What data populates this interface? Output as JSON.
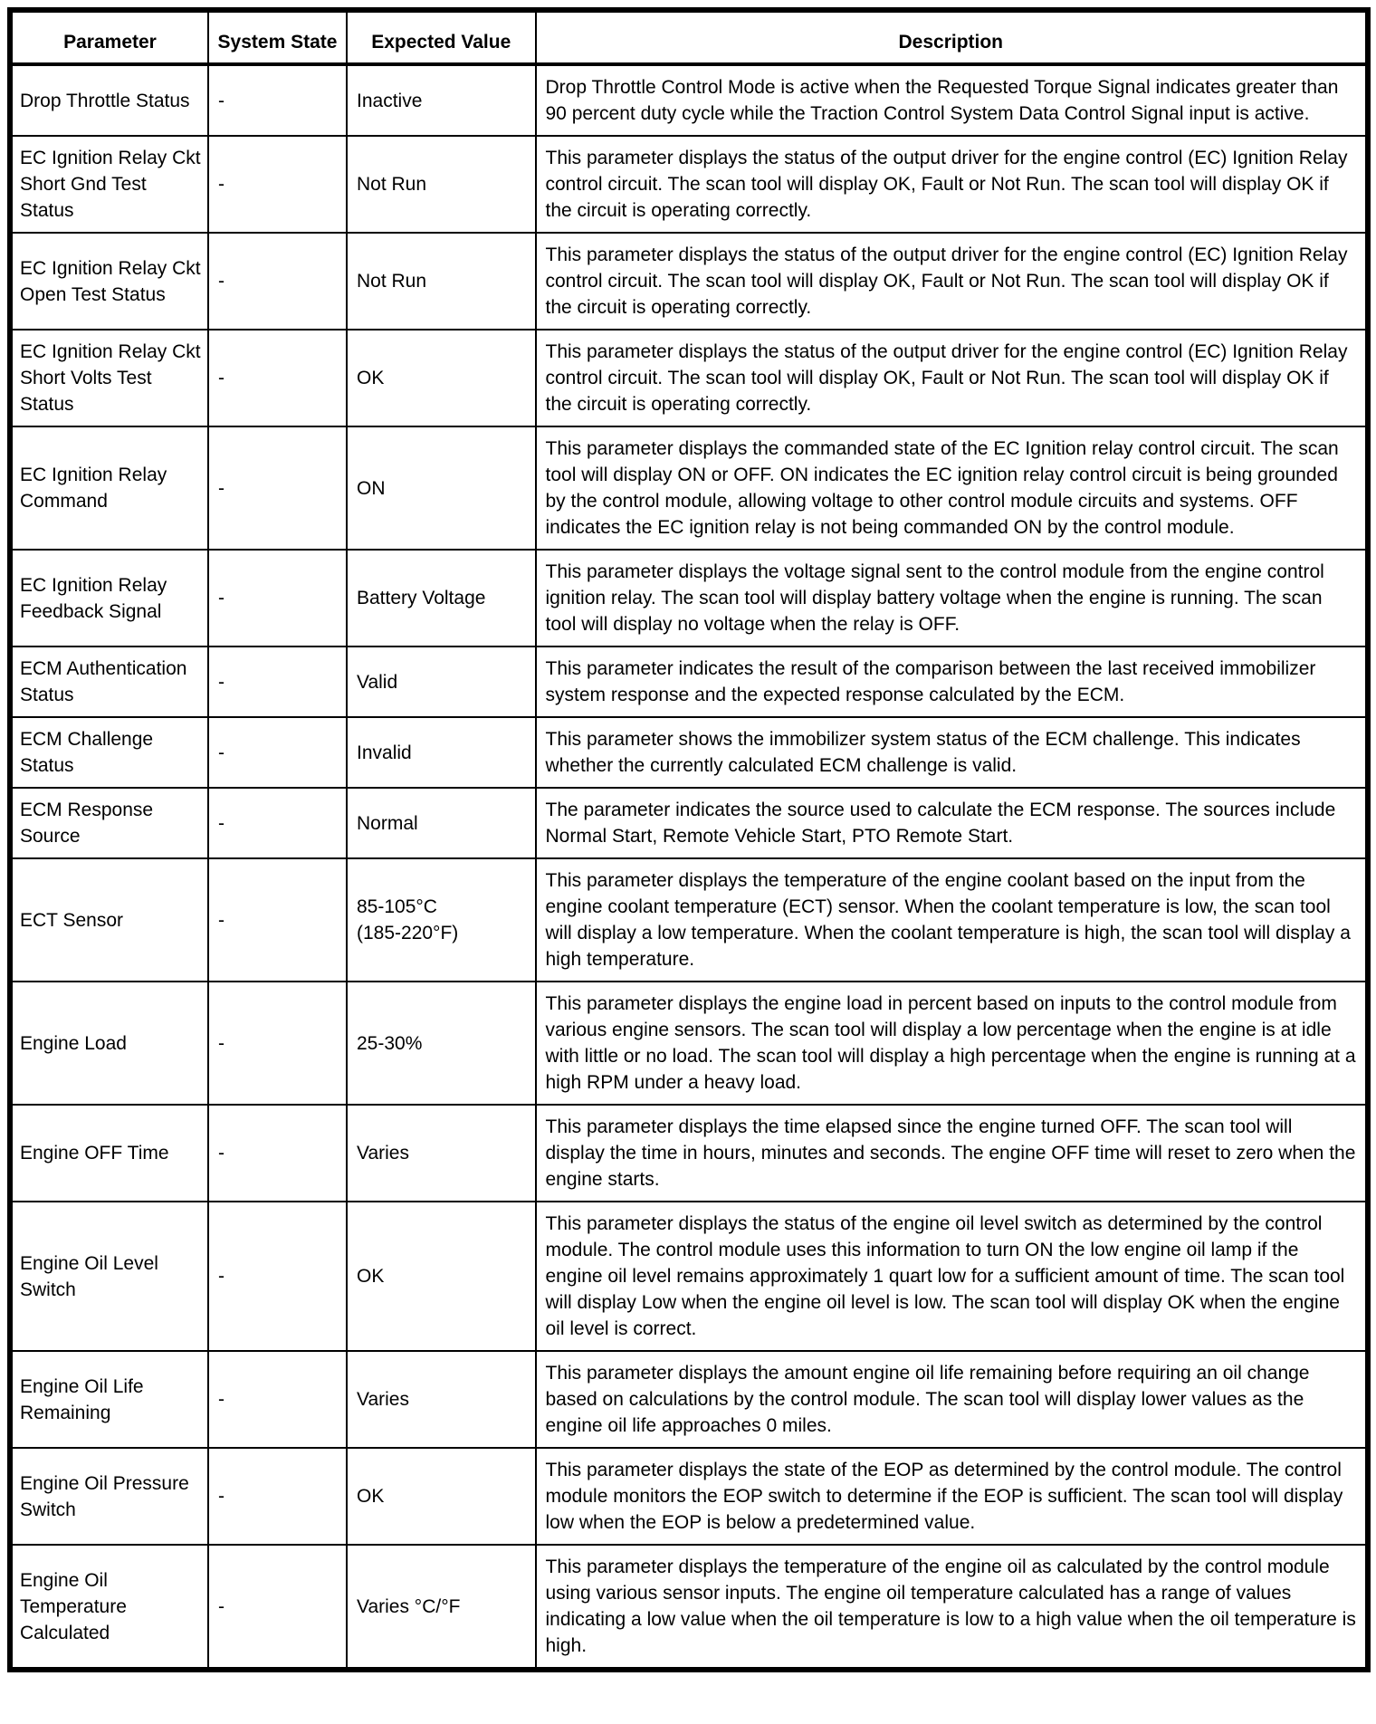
{
  "table": {
    "headers": {
      "parameter": "Parameter",
      "system_state": "System State",
      "expected_value": "Expected Value",
      "description": "Description"
    },
    "rows": [
      {
        "parameter": "Drop Throttle Status",
        "system_state": "-",
        "expected_value": "Inactive",
        "description": "Drop Throttle Control Mode is active when the Requested Torque Signal indicates greater than 90 percent duty cycle while the Traction Control System Data Control Signal input is active."
      },
      {
        "parameter": "EC Ignition Relay Ckt Short Gnd Test Status",
        "system_state": "-",
        "expected_value": "Not Run",
        "description": "This parameter displays the status of the output driver for the engine control (EC) Ignition Relay control circuit. The scan tool will display OK, Fault or Not Run. The scan tool will display OK if the circuit is operating correctly."
      },
      {
        "parameter": "EC Ignition Relay Ckt Open Test Status",
        "system_state": "-",
        "expected_value": "Not Run",
        "description": "This parameter displays the status of the output driver for the engine control (EC) Ignition Relay control circuit. The scan tool will display OK, Fault or Not Run. The scan tool will display OK if the circuit is operating correctly."
      },
      {
        "parameter": "EC Ignition Relay Ckt Short Volts Test Status",
        "system_state": "-",
        "expected_value": "OK",
        "description": "This parameter displays the status of the output driver for the engine control (EC) Ignition Relay control circuit. The scan tool will display OK, Fault or Not Run. The scan tool will display OK if the circuit is operating correctly."
      },
      {
        "parameter": "EC Ignition Relay Command",
        "system_state": "-",
        "expected_value": "ON",
        "description": "This parameter displays the commanded state of the EC Ignition relay control circuit. The scan tool will display ON or OFF. ON indicates the EC ignition relay control circuit is being grounded by the control module, allowing voltage to other control module circuits and systems. OFF indicates the EC ignition relay is not being commanded ON by the control module."
      },
      {
        "parameter": "EC Ignition Relay Feedback Signal",
        "system_state": "-",
        "expected_value": "Battery Voltage",
        "description": "This parameter displays the voltage signal sent to the control module from the engine control ignition relay. The scan tool will display battery voltage when the engine is running. The scan tool will display no voltage when the relay is OFF."
      },
      {
        "parameter": "ECM Authentication Status",
        "system_state": "-",
        "expected_value": "Valid",
        "description": "This parameter indicates the result of the comparison between the last received immobilizer system response and the expected response calculated by the ECM."
      },
      {
        "parameter": "ECM Challenge Status",
        "system_state": "-",
        "expected_value": "Invalid",
        "description": "This parameter shows the immobilizer system status of the ECM challenge. This indicates whether the currently calculated ECM challenge is valid."
      },
      {
        "parameter": "ECM Response Source",
        "system_state": "-",
        "expected_value": "Normal",
        "description": "The parameter indicates the source used to calculate the ECM response. The sources include Normal Start, Remote Vehicle Start, PTO Remote Start."
      },
      {
        "parameter": "ECT Sensor",
        "system_state": "-",
        "expected_value": "85-105°C\n(185-220°F)",
        "description": "This parameter displays the temperature of the engine coolant based on the input from the engine coolant temperature (ECT) sensor. When the coolant temperature is low, the scan tool will display a low temperature. When the coolant temperature is high, the scan tool will display a high temperature."
      },
      {
        "parameter": "Engine Load",
        "system_state": "-",
        "expected_value": "25-30%",
        "description": "This parameter displays the engine load in percent based on inputs to the control module from various engine sensors. The scan tool will display a low percentage when the engine is at idle with little or no load. The scan tool will display a high percentage when the engine is running at a high RPM under a heavy load."
      },
      {
        "parameter": "Engine OFF Time",
        "system_state": "-",
        "expected_value": "Varies",
        "description": "This parameter displays the time elapsed since the engine turned OFF. The scan tool will display the time in hours, minutes and seconds. The engine OFF time will reset to zero when the engine starts."
      },
      {
        "parameter": "Engine Oil Level Switch",
        "system_state": "-",
        "expected_value": "OK",
        "description": "This parameter displays the status of the engine oil level switch as determined by the control module. The control module uses this information to turn ON the low engine oil lamp if the engine oil level remains approximately 1 quart low for a sufficient amount of time. The scan tool will display Low when the engine oil level is low. The scan tool will display OK when the engine oil level is correct."
      },
      {
        "parameter": "Engine Oil Life Remaining",
        "system_state": "-",
        "expected_value": "Varies",
        "description": "This parameter displays the amount engine oil life remaining before requiring an oil change based on calculations by the control module. The scan tool will display lower values as the engine oil life approaches 0 miles."
      },
      {
        "parameter": "Engine Oil Pressure Switch",
        "system_state": "-",
        "expected_value": "OK",
        "description": "This parameter displays the state of the EOP as determined by the control module. The control module monitors the EOP switch to determine if the EOP is sufficient. The scan tool will display low when the EOP is below a predetermined value."
      },
      {
        "parameter": "Engine Oil Temperature Calculated",
        "system_state": "-",
        "expected_value": "Varies °C/°F",
        "description": "This parameter displays the temperature of the engine oil as calculated by the control module using various sensor inputs. The engine oil temperature calculated has a range of values indicating a low value when the oil temperature is low to a high value when the oil temperature is high."
      }
    ]
  }
}
